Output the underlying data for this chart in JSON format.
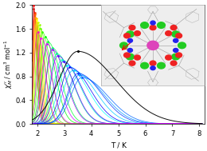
{
  "xlabel": "T / K",
  "ylim": [
    0.0,
    2.0
  ],
  "xlim": [
    1.8,
    8.2
  ],
  "yticks": [
    0.0,
    0.4,
    0.8,
    1.2,
    1.6,
    2.0
  ],
  "xticks": [
    2,
    3,
    4,
    5,
    6,
    7,
    8
  ],
  "n_curves": 28,
  "T_start": 1.82,
  "T_end": 8.1,
  "n_points": 120,
  "curve_colors": [
    "#ff0000",
    "#cc0000",
    "#ff3300",
    "#ff6600",
    "#ff9900",
    "#ffcc00",
    "#ffff00",
    "#ccff00",
    "#99ff00",
    "#66ff00",
    "#33ff00",
    "#00ff00",
    "#00ff33",
    "#00ff66",
    "#00ff99",
    "#00ffcc",
    "#00ffff",
    "#00ccff",
    "#0099ff",
    "#0066ff",
    "#0033ff",
    "#0000ff",
    "#3300ff",
    "#6600ff",
    "#9900ff",
    "#cc00ff",
    "#ff00ff",
    "#ff00cc"
  ],
  "peak_positions": [
    1.86,
    1.88,
    1.9,
    1.92,
    1.94,
    1.96,
    1.98,
    2.0,
    2.05,
    2.1,
    2.18,
    2.28,
    2.4,
    2.55,
    2.72,
    2.9,
    3.1,
    3.32,
    3.55,
    3.65,
    3.5,
    3.2,
    2.95,
    2.75,
    2.55,
    2.35,
    2.15,
    2.0
  ],
  "peak_heights": [
    2.0,
    1.95,
    1.9,
    1.85,
    1.82,
    1.78,
    1.75,
    1.72,
    1.68,
    1.62,
    1.55,
    1.47,
    1.38,
    1.28,
    1.18,
    1.08,
    0.98,
    0.9,
    0.82,
    0.78,
    0.85,
    0.95,
    1.05,
    1.15,
    1.25,
    1.35,
    1.45,
    1.55
  ],
  "widths": [
    0.08,
    0.09,
    0.1,
    0.11,
    0.12,
    0.13,
    0.14,
    0.15,
    0.17,
    0.2,
    0.23,
    0.27,
    0.32,
    0.37,
    0.42,
    0.48,
    0.54,
    0.6,
    0.65,
    0.68,
    0.62,
    0.55,
    0.48,
    0.42,
    0.36,
    0.3,
    0.25,
    0.2
  ]
}
